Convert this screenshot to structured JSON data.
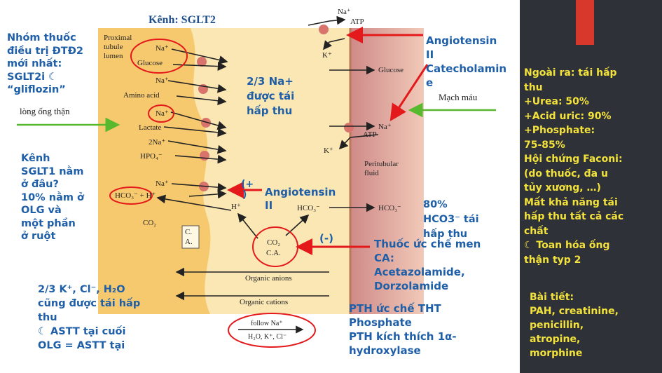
{
  "slide": {
    "title": "Kênh: SGLT2",
    "colors": {
      "white_bg": "#ffffff",
      "cell": "#f7c96f",
      "cytoplasm": "#fbe7b4",
      "blood": "#c97a7e",
      "dark_panel": "#2f3139",
      "red_tab": "#d8372c",
      "blue_text": "#1f5fa8",
      "yellow_text": "#f2e23a",
      "green_arrow": "#58b82e",
      "red_arrow": "#e3191b"
    }
  },
  "figure": {
    "lumen_label": [
      "Proximal",
      "tubule",
      "lumen"
    ],
    "lumen_items": [
      "Na⁺",
      "Glucose",
      "Na⁺",
      "Amino acid",
      "Na⁺",
      "Lactate",
      "2Na⁺",
      "HPO₄⁻",
      "Na⁺",
      "HCO₃⁻ + H⁺",
      "CO₂"
    ],
    "cell_items": {
      "h_plus": "H⁺",
      "hco3": "HCO₃⁻",
      "co2": "CO₂",
      "ca": "C.A.",
      "ca_box": "C.\nA."
    },
    "blood_items": {
      "na_top": "Na⁺",
      "atp_top": "ATP",
      "k_top": "K⁺",
      "glucose": "Glucose",
      "na_mid": "Na⁺",
      "atp_mid": "ATP",
      "k_mid": "K⁺",
      "fluid": [
        "Peritubular",
        "fluid"
      ],
      "hco3": "HCO₃⁻"
    },
    "bands": {
      "anions": "Organic anions",
      "cations": "Organic cations"
    },
    "follow": {
      "line1": "follow Na⁺",
      "line2": "H₂O, K⁺, Cl⁻"
    },
    "vietnamese_labels": {
      "tubule": "lòng ống thận",
      "vessel": "Mạch máu"
    }
  },
  "notes": {
    "left_top": [
      "Nhóm thuốc",
      "điều trị ĐTĐ2",
      "mới nhất:",
      "SGLT2i ☾",
      "“gliflozin”"
    ],
    "left_mid": [
      "Kênh",
      "SGLT1 nằm",
      "ở đâu?",
      "10% nằm ở",
      "OLG và",
      "một phần",
      "ở ruột"
    ],
    "left_bottom": [
      "2/3 K⁺, Cl⁻, H₂O",
      "cũng được tái hấp",
      "thu",
      "☾ ASTT tại cuối",
      "OLG = ASTT tại"
    ],
    "center_na": [
      "2/3 Na+",
      "được tái",
      "hấp thu"
    ],
    "plus_sign": "(+",
    "plus_close": ")",
    "angiotensin_cell": [
      "Angiotensin",
      "II"
    ],
    "minus_sign": "(-)",
    "hco3_80": [
      "80%",
      "HCO3⁻ tái",
      "hấp thu"
    ],
    "ca_drugs": [
      "Thuốc ức chế men",
      "CA:",
      "Acetazolamide,",
      "Dorzolamide"
    ],
    "pth": [
      "PTH ức chế THT",
      "Phosphate",
      "PTH kích thích 1α-",
      "hydroxylase"
    ],
    "angiotensin_top": [
      "Angiotensin",
      "II",
      "Catecholamin",
      "e"
    ],
    "right_main": [
      "Ngoài ra: tái hấp",
      "thu",
      "+Urea: 50%",
      "+Acid uric: 90%",
      "+Phosphate:",
      "75-85%",
      "Hội chứng Faconi:",
      "(do thuốc, đa u",
      "tủy xương, …)",
      "Mất khả năng tái",
      "hấp thu tất cả các",
      "chất",
      "☾ Toan hóa ống",
      "thận typ 2"
    ],
    "right_secretion": [
      "Bài tiết:",
      "PAH, creatinine,",
      "penicillin,",
      "atropine,",
      "morphine"
    ]
  }
}
